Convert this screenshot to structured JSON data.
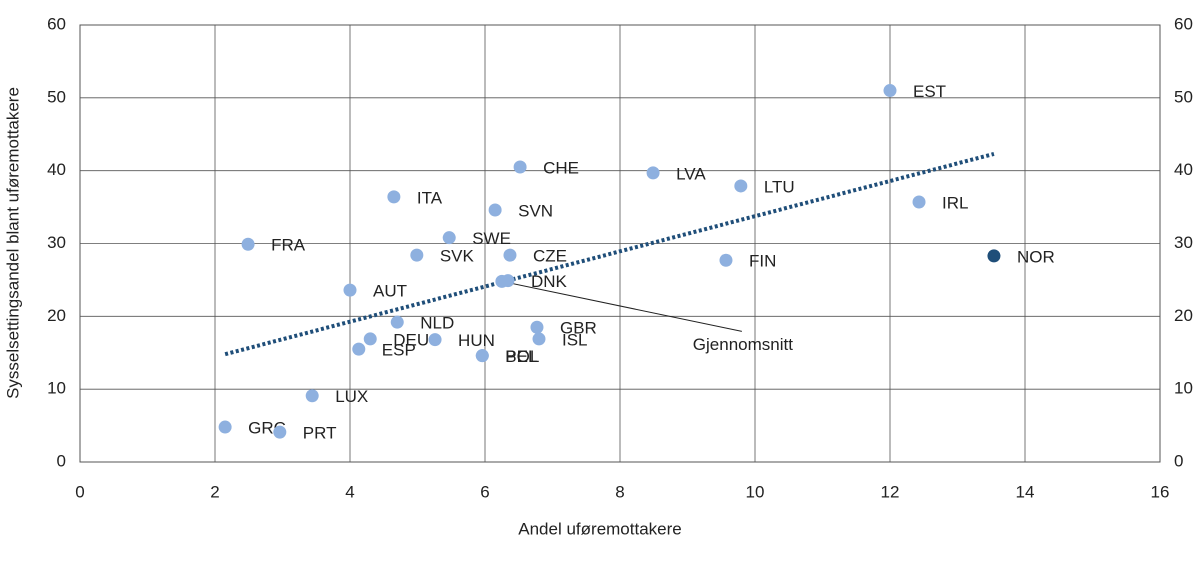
{
  "chart_data": {
    "type": "scatter",
    "x_label": "Andel uføremottakere",
    "y_label": "Sysselsettingsandel blant uføremottakere",
    "labels": [
      "EST",
      "CHE",
      "LVA",
      "LTU",
      "IRL",
      "ITA",
      "SVN",
      "SWE",
      "FRA",
      "SVK",
      "CZE",
      "FIN",
      "NOR",
      "DNK",
      "AUT",
      "NLD",
      "GBR",
      "DEU",
      "HUN",
      "ISL",
      "ESP",
      "POL",
      "BEL",
      "LUX",
      "GRC",
      "PRT"
    ],
    "x": [
      12.0,
      6.52,
      8.49,
      9.79,
      12.43,
      4.65,
      6.15,
      5.47,
      2.49,
      4.99,
      6.37,
      9.57,
      13.54,
      6.34,
      4.0,
      4.7,
      6.77,
      4.3,
      5.26,
      6.8,
      4.13,
      5.96,
      5.96,
      3.44,
      2.15,
      2.96
    ],
    "y": [
      51,
      40.5,
      39.7,
      37.9,
      35.7,
      36.4,
      34.6,
      30.8,
      29.9,
      28.4,
      28.4,
      27.7,
      28.3,
      24.9,
      23.6,
      19.2,
      18.5,
      16.9,
      16.8,
      16.9,
      15.5,
      14.6,
      14.6,
      9.1,
      4.8,
      4.1
    ],
    "colors": [
      "#8eb0df",
      "#8eb0df",
      "#8eb0df",
      "#8eb0df",
      "#8eb0df",
      "#8eb0df",
      "#8eb0df",
      "#8eb0df",
      "#8eb0df",
      "#8eb0df",
      "#8eb0df",
      "#8eb0df",
      "#1f4e79",
      "#8eb0df",
      "#8eb0df",
      "#8eb0df",
      "#8eb0df",
      "#8eb0df",
      "#8eb0df",
      "#8eb0df",
      "#8eb0df",
      "#8eb0df",
      "#8eb0df",
      "#8eb0df",
      "#8eb0df",
      "#8eb0df"
    ],
    "average": {
      "text": "Gjennomsnitt",
      "x": 6.25,
      "y": 24.8,
      "color": "#8eb0df"
    },
    "trendline": {
      "x": [
        2.15,
        13.54
      ],
      "y": [
        14.8,
        42.3
      ],
      "color": "#1f4e79"
    },
    "xlim": [
      0,
      16
    ],
    "xticks": [
      0,
      2,
      4,
      6,
      8,
      10,
      12,
      14,
      16
    ],
    "ylim": [
      0,
      60
    ],
    "yticks": [
      0,
      10,
      20,
      30,
      40,
      50,
      60
    ],
    "grid": true
  }
}
